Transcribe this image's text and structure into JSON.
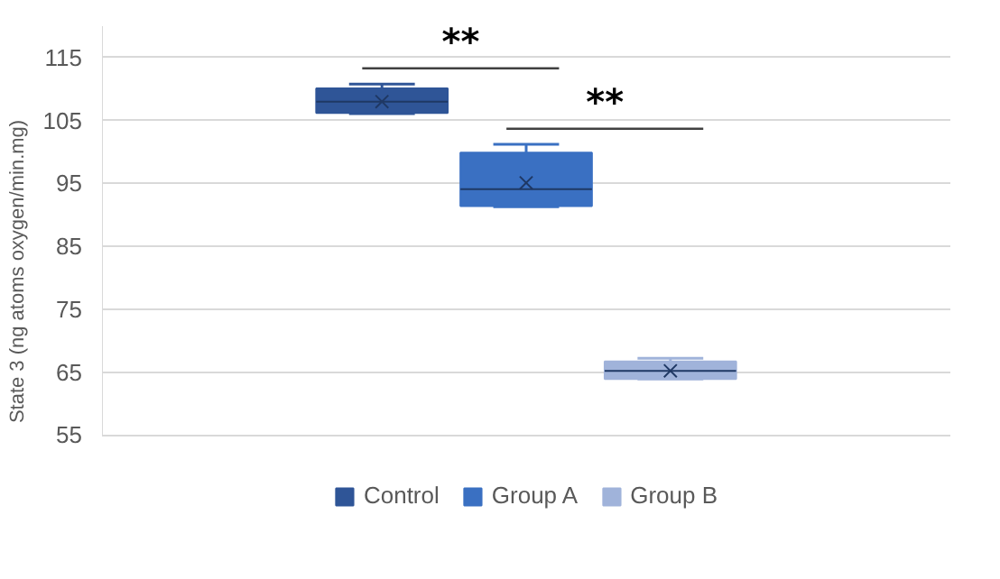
{
  "chart_data": {
    "type": "box",
    "ylabel": "State 3 (ng atoms oxygen/min.mg)",
    "categories": [
      null
    ],
    "series": [
      {
        "name": "Control",
        "color": "#2f5597",
        "boxes": [
          {
            "low": 106.1,
            "q1": 106.2,
            "median": 108.0,
            "q3": 110.1,
            "high": 110.8,
            "mean": 108.0
          }
        ]
      },
      {
        "name": "Group A",
        "color": "#3a70c2",
        "boxes": [
          {
            "low": 91.3,
            "q1": 91.4,
            "median": 94.1,
            "q3": 99.9,
            "high": 101.2,
            "mean": 95.1
          }
        ]
      },
      {
        "name": "Group B",
        "color": "#a0b3da",
        "boxes": [
          {
            "low": 63.9,
            "q1": 63.9,
            "median": 65.2,
            "q3": 66.7,
            "high": 67.2,
            "mean": 65.2
          }
        ]
      }
    ],
    "ylim": [
      55,
      120
    ],
    "yticks": [
      55,
      65,
      75,
      85,
      95,
      105,
      115
    ],
    "grid": "y",
    "legend": "bottom",
    "annotations": [
      "**",
      "**"
    ]
  }
}
